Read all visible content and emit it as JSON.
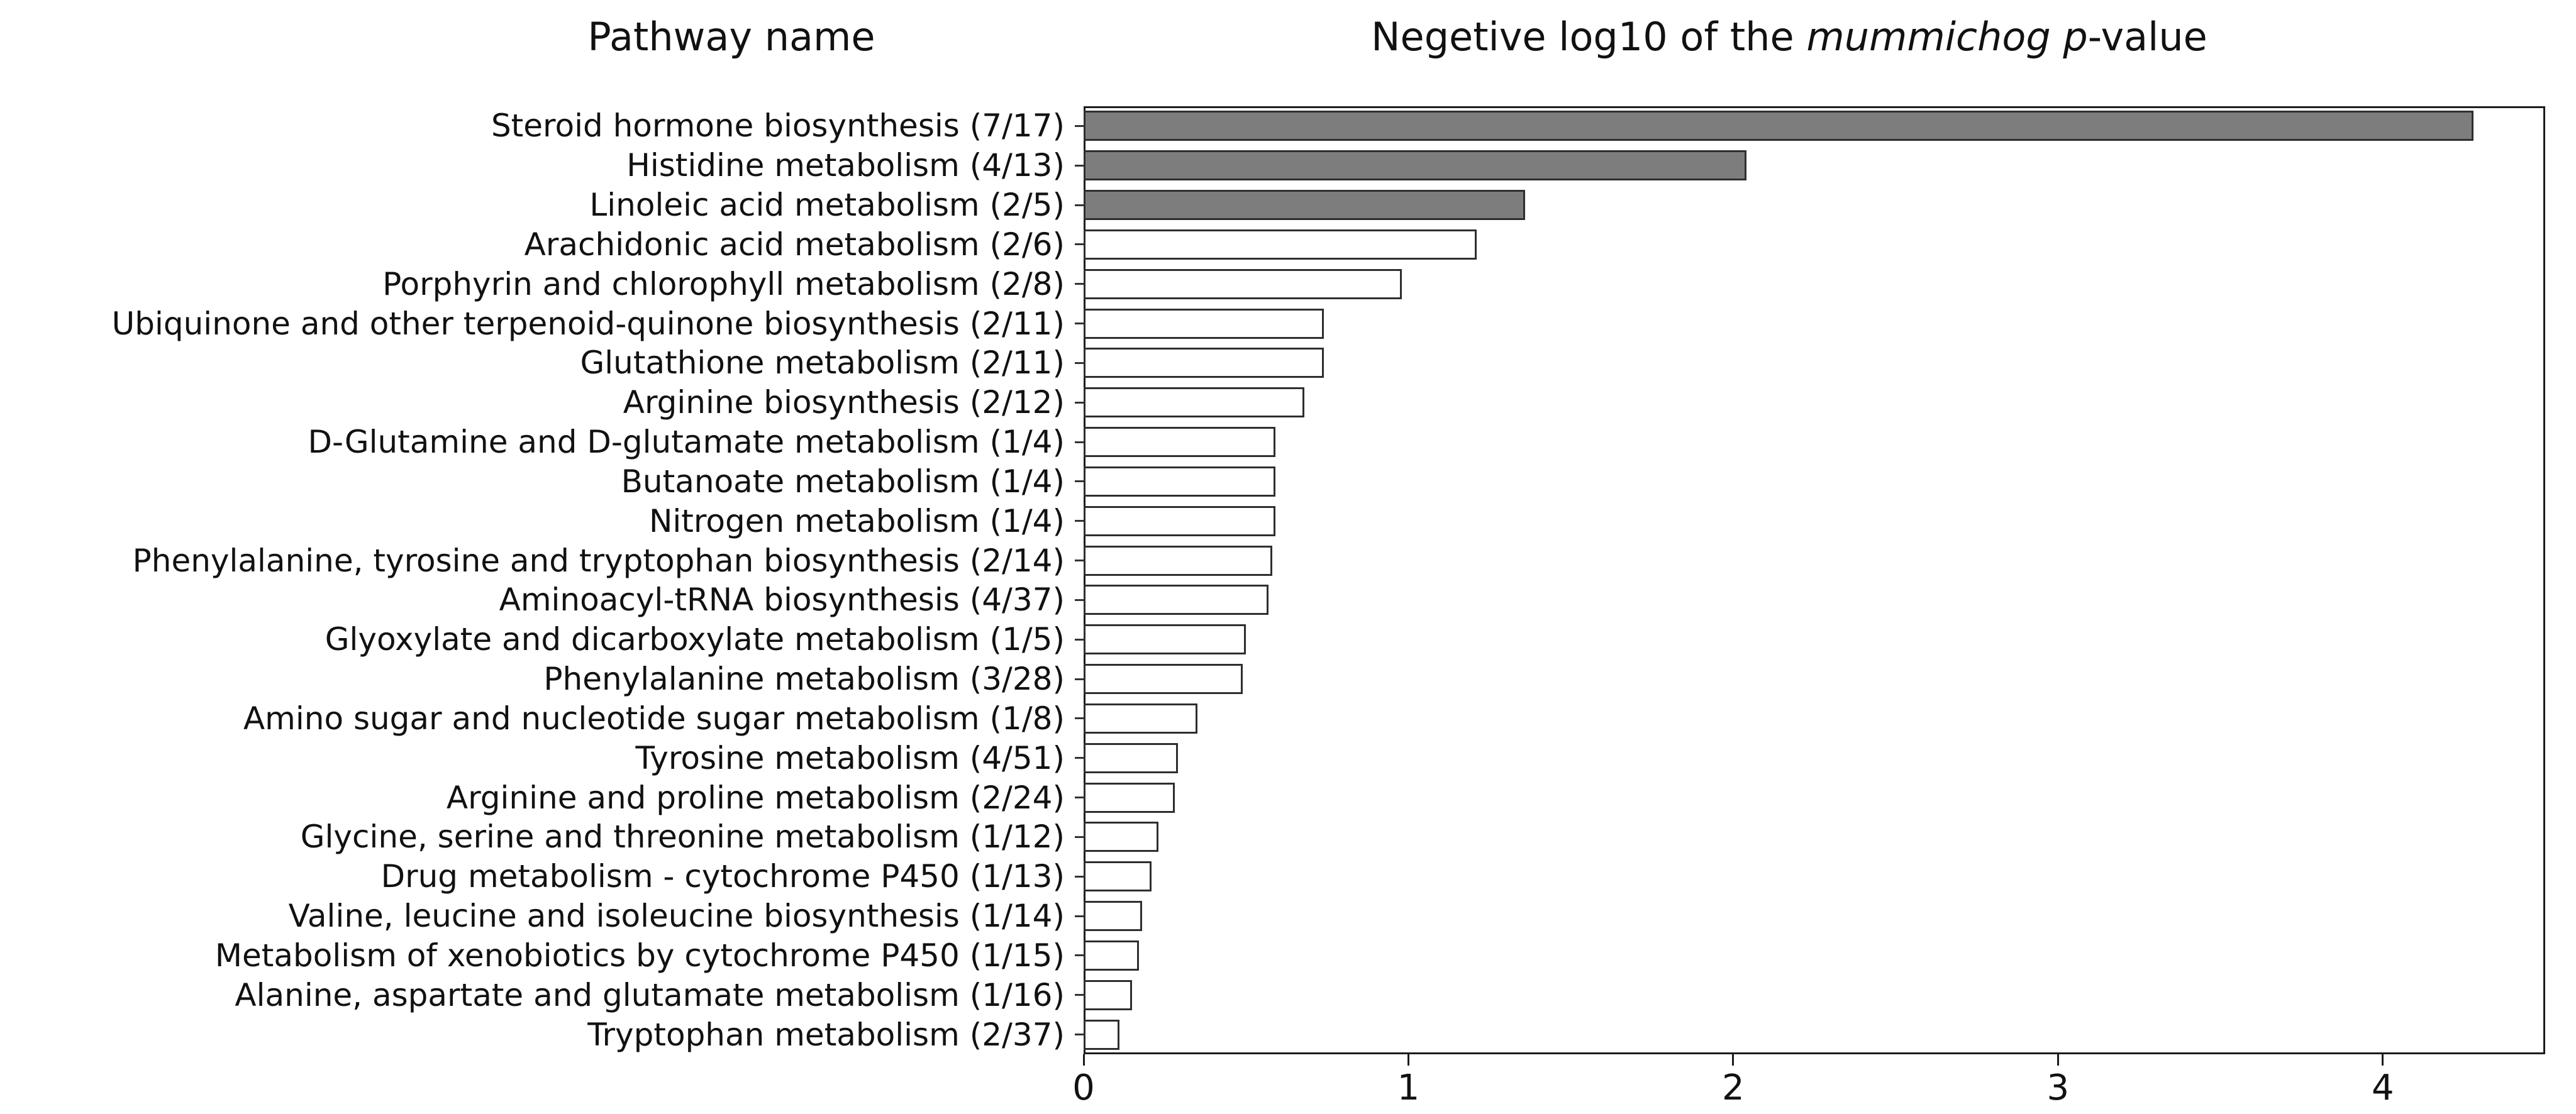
{
  "header": {
    "left_title": "Pathway name",
    "right_title": {
      "prefix": "Negetive log10 of the ",
      "italic": "mummichog p",
      "suffix": "-value"
    }
  },
  "chart_data": {
    "type": "bar",
    "orientation": "horizontal",
    "title_left": "Pathway name",
    "title_right": "Negetive log10 of the mummichog p-value",
    "xlabel": "",
    "ylabel": "",
    "xlim": [
      0,
      4.5
    ],
    "x_ticks": [
      "0",
      "1",
      "2",
      "3",
      "4"
    ],
    "x_tick_values": [
      0,
      1,
      2,
      3,
      4
    ],
    "grid": false,
    "legend": "none",
    "colors": {
      "bar_fill_significant": "#7d7d7d",
      "bar_fill_default": "#ffffff",
      "bar_border": "#2e2e2e",
      "axis": "#1c1c1c"
    },
    "categories": [
      "Steroid hormone biosynthesis (7/17)",
      "Histidine metabolism (4/13)",
      "Linoleic acid metabolism (2/5)",
      "Arachidonic acid metabolism (2/6)",
      "Porphyrin and chlorophyll metabolism (2/8)",
      "Ubiquinone and other terpenoid-quinone biosynthesis (2/11)",
      "Glutathione metabolism (2/11)",
      "Arginine biosynthesis (2/12)",
      "D-Glutamine and D-glutamate metabolism (1/4)",
      "Butanoate metabolism (1/4)",
      "Nitrogen metabolism (1/4)",
      "Phenylalanine, tyrosine and tryptophan biosynthesis (2/14)",
      "Aminoacyl-tRNA biosynthesis (4/37)",
      "Glyoxylate and dicarboxylate metabolism (1/5)",
      "Phenylalanine metabolism (3/28)",
      "Amino sugar and nucleotide sugar metabolism (1/8)",
      "Tyrosine metabolism (4/51)",
      "Arginine and proline metabolism (2/24)",
      "Glycine, serine and threonine metabolism (1/12)",
      "Drug metabolism - cytochrome P450 (1/13)",
      "Valine, leucine and isoleucine biosynthesis (1/14)",
      "Metabolism of xenobiotics by cytochrome P450 (1/15)",
      "Alanine, aspartate and glutamate metabolism (1/16)",
      "Tryptophan metabolism (2/37)"
    ],
    "values": [
      4.28,
      2.04,
      1.36,
      1.21,
      0.98,
      0.74,
      0.74,
      0.68,
      0.59,
      0.59,
      0.59,
      0.58,
      0.57,
      0.5,
      0.49,
      0.35,
      0.29,
      0.28,
      0.23,
      0.21,
      0.18,
      0.17,
      0.15,
      0.11
    ],
    "significant": [
      true,
      true,
      true,
      false,
      false,
      false,
      false,
      false,
      false,
      false,
      false,
      false,
      false,
      false,
      false,
      false,
      false,
      false,
      false,
      false,
      false,
      false,
      false,
      false
    ]
  }
}
